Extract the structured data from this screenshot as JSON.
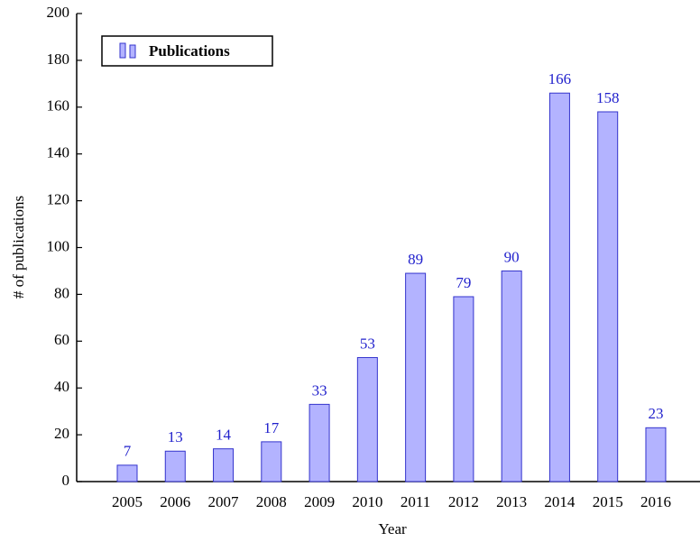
{
  "chart_data": {
    "type": "bar",
    "x_label": "Year",
    "y_label": "# of publications",
    "categories": [
      "2005",
      "2006",
      "2007",
      "2008",
      "2009",
      "2010",
      "2011",
      "2012",
      "2013",
      "2014",
      "2015",
      "2016"
    ],
    "series": [
      {
        "name": "Publications",
        "color": "#b3b3ff",
        "values": [
          7,
          13,
          14,
          17,
          33,
          53,
          89,
          79,
          90,
          166,
          158,
          23
        ]
      }
    ],
    "ylim": [
      0,
      200
    ],
    "yticks": [
      0,
      20,
      40,
      60,
      80,
      100,
      120,
      140,
      160,
      180,
      200
    ],
    "legend": "upper left",
    "grid": false
  }
}
